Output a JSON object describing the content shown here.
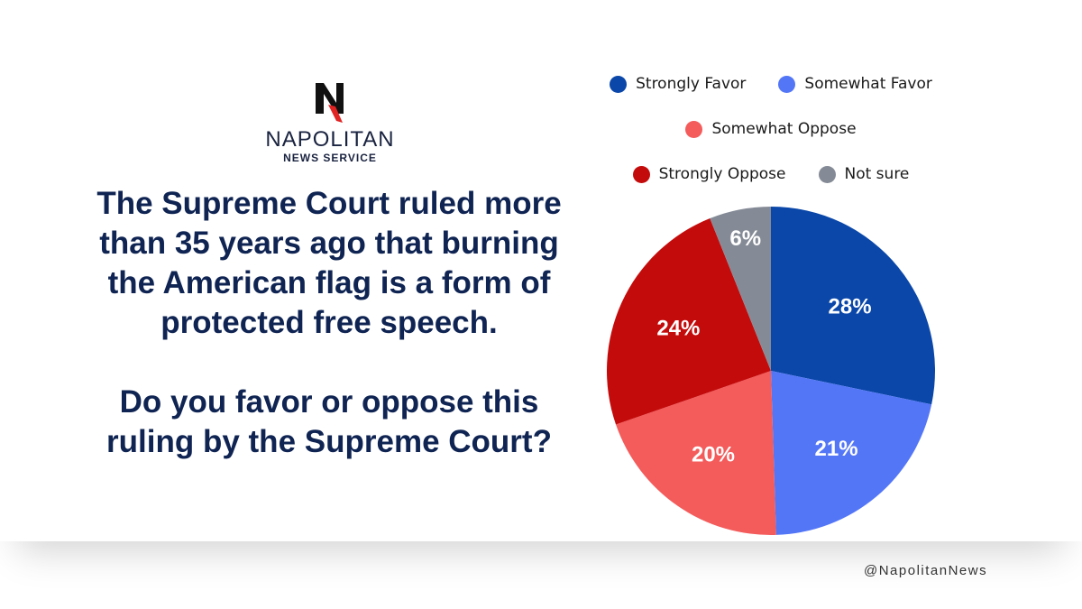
{
  "brand": {
    "name": "NAPOLITAN",
    "subtitle": "NEWS SERVICE",
    "letter": "N",
    "handle": "@NapolitanNews"
  },
  "question": {
    "line1": "The Supreme Court ruled more than 35 years ago that burning the American flag is a form of protected free speech.",
    "line2": "Do you favor or oppose this ruling by the Supreme Court?"
  },
  "chart_data": {
    "type": "pie",
    "title": "",
    "legend_position": "top",
    "slices": [
      {
        "label": "Strongly Favor",
        "value": 28,
        "display": "28%",
        "color": "#0a47a9"
      },
      {
        "label": "Somewhat Favor",
        "value": 21,
        "display": "21%",
        "color": "#5376f7"
      },
      {
        "label": "Somewhat Oppose",
        "value": 20,
        "display": "20%",
        "color": "#f45b5b"
      },
      {
        "label": "Strongly Oppose",
        "value": 24,
        "display": "24%",
        "color": "#c40b0b"
      },
      {
        "label": "Not sure",
        "value": 6,
        "display": "6%",
        "color": "#858b96"
      }
    ]
  }
}
